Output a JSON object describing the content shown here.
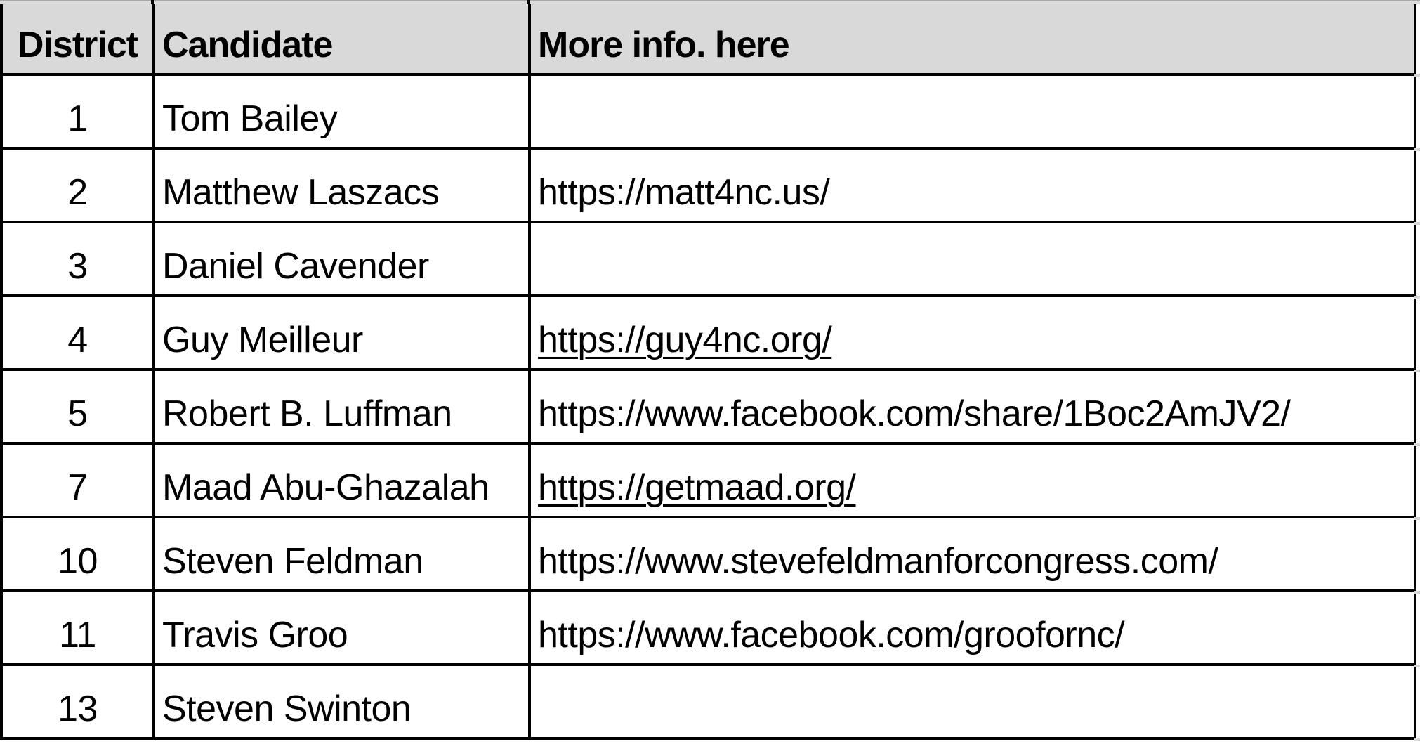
{
  "table": {
    "columns": [
      {
        "label": "District"
      },
      {
        "label": "Candidate"
      },
      {
        "label": "More info. here"
      }
    ],
    "rows": [
      {
        "district": "1",
        "candidate": "Tom Bailey",
        "url": "",
        "linked": false
      },
      {
        "district": "2",
        "candidate": "Matthew Laszacs",
        "url": "https://matt4nc.us/",
        "linked": false
      },
      {
        "district": "3",
        "candidate": "Daniel Cavender",
        "url": "",
        "linked": false
      },
      {
        "district": "4",
        "candidate": "Guy Meilleur",
        "url": "https://guy4nc.org/",
        "linked": true
      },
      {
        "district": "5",
        "candidate": "Robert B. Luffman",
        "url": "https://www.facebook.com/share/1Boc2AmJV2/",
        "linked": false
      },
      {
        "district": "7",
        "candidate": "Maad Abu-Ghazalah",
        "url": "https://getmaad.org/",
        "linked": true
      },
      {
        "district": "10",
        "candidate": "Steven Feldman",
        "url": "https://www.stevefeldmanforcongress.com/",
        "linked": false
      },
      {
        "district": "11",
        "candidate": "Travis Groo",
        "url": "https://www.facebook.com/groofornc/",
        "linked": false
      },
      {
        "district": "13",
        "candidate": "Steven Swinton",
        "url": "",
        "linked": false
      }
    ]
  },
  "colors": {
    "header_bg": "#D9D9D9",
    "grid_border": "#000000",
    "link_text": "#000000",
    "top_strip": "#DCDCDC"
  }
}
